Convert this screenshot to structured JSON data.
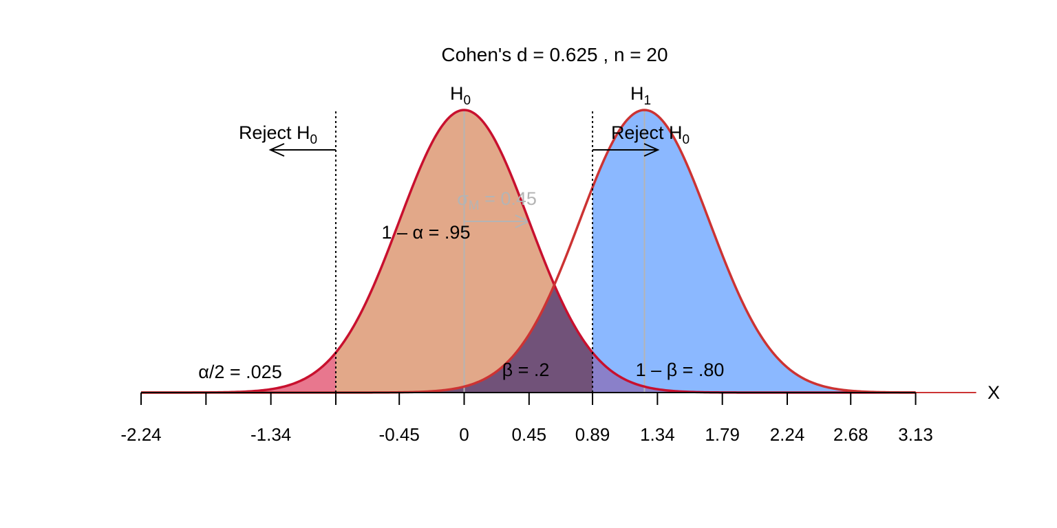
{
  "chart_data": {
    "type": "area",
    "title": "Cohen's d = 0.625 , n = 20",
    "xlabel": "X",
    "ylabel": "",
    "grid": false,
    "xlim": [
      -2.24,
      3.55
    ],
    "x_ticks": [
      -2.24,
      -1.79,
      -1.34,
      -0.89,
      -0.45,
      0,
      0.45,
      0.89,
      1.34,
      1.79,
      2.24,
      2.68,
      3.13
    ],
    "x_tick_labels": [
      "-2.24",
      "",
      "-1.34",
      "",
      "-0.45",
      "0",
      "0.45",
      "0.89",
      "1.34",
      "1.79",
      "2.24",
      "2.68",
      "3.13"
    ],
    "distributions": [
      {
        "label": "H",
        "subscript": "0",
        "mean": 0,
        "sd": 0.45,
        "color": "#c8102e"
      },
      {
        "label": "H",
        "subscript": "1",
        "mean": 1.25,
        "sd": 0.45,
        "color": "#cc3333"
      }
    ],
    "critical_values": [
      -0.89,
      0.89
    ],
    "reject_labels": [
      {
        "text": "Reject H",
        "subscript": "0",
        "side": "left"
      },
      {
        "text": "Reject H",
        "subscript": "0",
        "side": "right"
      }
    ],
    "regions": [
      {
        "name": "alpha-half",
        "label": "α/2 = .025",
        "color": "#e8778e"
      },
      {
        "name": "one-minus-alpha",
        "label": "1 – α = .95",
        "color": "#e2a889"
      },
      {
        "name": "beta",
        "label": "β = .2",
        "color": "#715279"
      },
      {
        "name": "power",
        "label": "1 – β = .80",
        "color": "#8bb8ff"
      },
      {
        "name": "overlap-right",
        "label": "",
        "color": "#8a80c9"
      }
    ],
    "sigma_label": {
      "text": "σ",
      "subscript": "M",
      "suffix": " = 0.45",
      "value": 0.45,
      "color": "#b4b4b4"
    }
  }
}
